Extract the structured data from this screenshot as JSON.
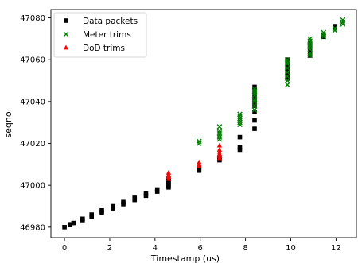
{
  "chart_data": {
    "type": "scatter",
    "title": "",
    "xlabel": "Timestamp (us)",
    "ylabel": "seqno",
    "xlim": [
      -0.6,
      12.9
    ],
    "ylim": [
      46975,
      47084
    ],
    "xticks": [
      0,
      2,
      4,
      6,
      8,
      10,
      12
    ],
    "yticks": [
      46980,
      47000,
      47020,
      47040,
      47060,
      47080
    ],
    "grid": false,
    "legend_position": "top-left",
    "series": [
      {
        "name": "Data packets",
        "marker": "square",
        "color": "#000000",
        "points": [
          [
            0.0,
            46980
          ],
          [
            0.25,
            46981
          ],
          [
            0.4,
            46982
          ],
          [
            0.8,
            46983
          ],
          [
            0.8,
            46984
          ],
          [
            1.2,
            46985
          ],
          [
            1.2,
            46986
          ],
          [
            1.65,
            46987
          ],
          [
            1.65,
            46988
          ],
          [
            2.15,
            46989
          ],
          [
            2.15,
            46990
          ],
          [
            2.6,
            46991
          ],
          [
            2.6,
            46992
          ],
          [
            3.1,
            46993
          ],
          [
            3.1,
            46994
          ],
          [
            3.6,
            46995
          ],
          [
            3.6,
            46996
          ],
          [
            4.1,
            46997
          ],
          [
            4.1,
            46998
          ],
          [
            4.6,
            46999
          ],
          [
            4.6,
            47000
          ],
          [
            4.6,
            47001
          ],
          [
            4.6,
            47002
          ],
          [
            4.6,
            47003
          ],
          [
            5.95,
            47007
          ],
          [
            5.95,
            47008
          ],
          [
            6.85,
            47012
          ],
          [
            6.85,
            47013
          ],
          [
            7.75,
            47017
          ],
          [
            7.75,
            47018
          ],
          [
            7.75,
            47023
          ],
          [
            8.4,
            47027
          ],
          [
            8.4,
            47031
          ],
          [
            8.4,
            47035
          ],
          [
            8.4,
            47038
          ],
          [
            8.4,
            47040
          ],
          [
            8.4,
            47042
          ],
          [
            8.4,
            47044
          ],
          [
            8.4,
            47046
          ],
          [
            8.4,
            47047
          ],
          [
            9.85,
            47051
          ],
          [
            9.85,
            47053
          ],
          [
            9.85,
            47055
          ],
          [
            9.85,
            47057
          ],
          [
            9.85,
            47059
          ],
          [
            9.85,
            47060
          ],
          [
            10.85,
            47062
          ],
          [
            10.85,
            47064
          ],
          [
            10.85,
            47066
          ],
          [
            10.85,
            47068
          ],
          [
            11.45,
            47071
          ],
          [
            11.45,
            47072
          ],
          [
            11.95,
            47075
          ],
          [
            11.95,
            47076
          ]
        ]
      },
      {
        "name": "Meter trims",
        "marker": "x",
        "color": "#008000",
        "points": [
          [
            5.95,
            47020
          ],
          [
            5.95,
            47021
          ],
          [
            6.85,
            47022
          ],
          [
            6.85,
            47023
          ],
          [
            6.85,
            47024
          ],
          [
            6.85,
            47025
          ],
          [
            6.85,
            47026
          ],
          [
            6.85,
            47028
          ],
          [
            7.75,
            47029
          ],
          [
            7.75,
            47030
          ],
          [
            7.75,
            47031
          ],
          [
            7.75,
            47032
          ],
          [
            7.75,
            47033
          ],
          [
            7.75,
            47034
          ],
          [
            8.4,
            47036
          ],
          [
            8.4,
            47038
          ],
          [
            8.4,
            47040
          ],
          [
            8.4,
            47041
          ],
          [
            8.4,
            47043
          ],
          [
            8.4,
            47044
          ],
          [
            8.4,
            47045
          ],
          [
            8.4,
            47046
          ],
          [
            9.85,
            47048
          ],
          [
            9.85,
            47050
          ],
          [
            9.85,
            47052
          ],
          [
            9.85,
            47054
          ],
          [
            9.85,
            47056
          ],
          [
            9.85,
            47058
          ],
          [
            9.85,
            47059
          ],
          [
            9.85,
            47060
          ],
          [
            10.85,
            47062
          ],
          [
            10.85,
            47063
          ],
          [
            10.85,
            47065
          ],
          [
            10.85,
            47066
          ],
          [
            10.85,
            47067
          ],
          [
            10.85,
            47068
          ],
          [
            10.85,
            47069
          ],
          [
            10.85,
            47070
          ],
          [
            11.45,
            47071
          ],
          [
            11.45,
            47072
          ],
          [
            11.45,
            47073
          ],
          [
            11.95,
            47074
          ],
          [
            11.95,
            47075
          ],
          [
            12.3,
            47077
          ],
          [
            12.3,
            47078
          ],
          [
            12.3,
            47079
          ]
        ]
      },
      {
        "name": "DoD trims",
        "marker": "triangle",
        "color": "#ff0000",
        "points": [
          [
            4.6,
            47003
          ],
          [
            4.6,
            47004
          ],
          [
            4.6,
            47005
          ],
          [
            4.6,
            47006
          ],
          [
            5.95,
            47009
          ],
          [
            5.95,
            47010
          ],
          [
            5.95,
            47011
          ],
          [
            6.85,
            47013
          ],
          [
            6.85,
            47014
          ],
          [
            6.85,
            47015
          ],
          [
            6.85,
            47016
          ],
          [
            6.85,
            47017
          ],
          [
            6.85,
            47019
          ]
        ]
      }
    ]
  }
}
